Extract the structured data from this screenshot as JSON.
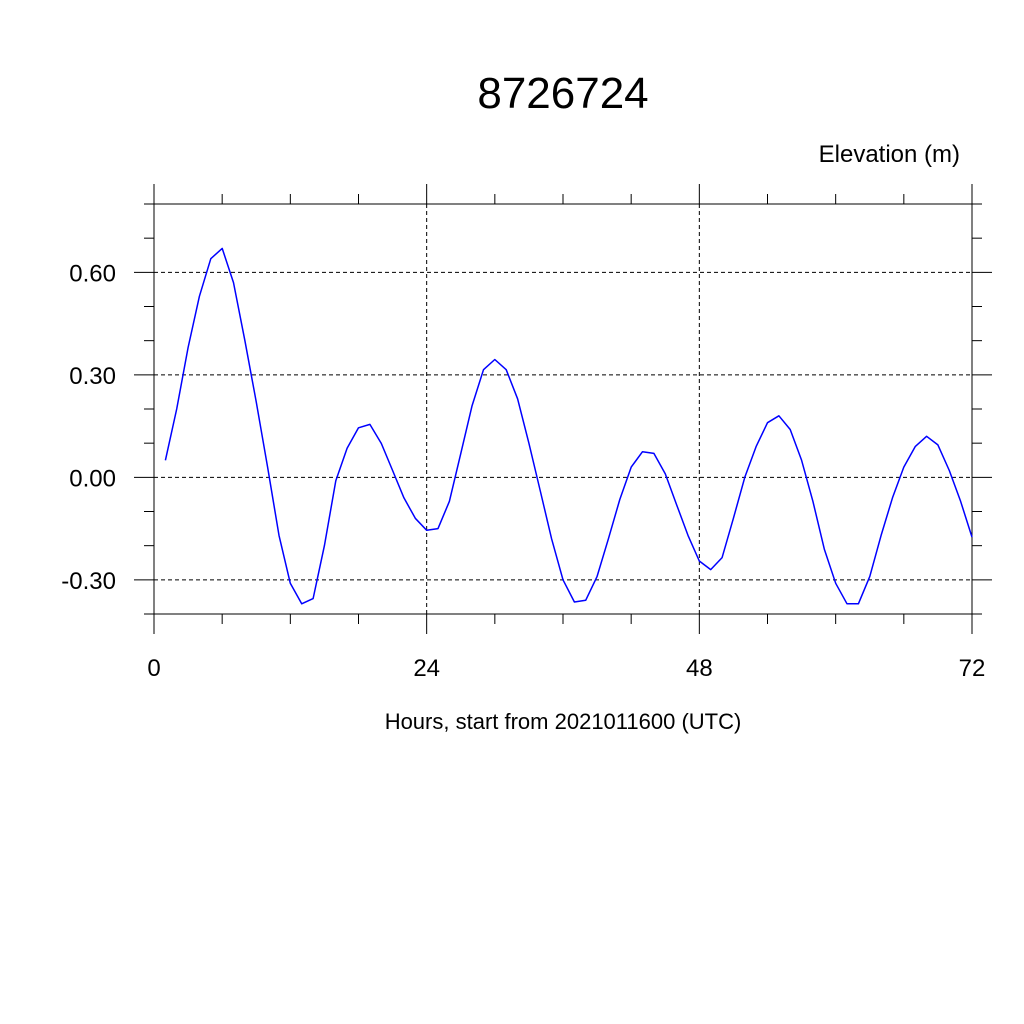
{
  "chart_data": {
    "type": "line",
    "title": "8726724",
    "ylabel": "Elevation (m)",
    "xlabel": "Hours, start from 2021011600 (UTC)",
    "xlim": [
      0,
      72
    ],
    "ylim": [
      -0.4,
      0.8
    ],
    "xticks": [
      0,
      24,
      48,
      72
    ],
    "xtick_labels": [
      "0",
      "24",
      "48",
      "72"
    ],
    "yticks": [
      0.6,
      0.3,
      0.0,
      -0.3
    ],
    "ytick_labels": [
      "0.60",
      "0.30",
      "0.00",
      "-0.30"
    ],
    "grid": true,
    "series": [
      {
        "color": "#0000ff",
        "x": [
          1,
          2,
          3,
          4,
          5,
          6,
          7,
          8,
          9,
          10,
          11,
          12,
          13,
          14,
          15,
          16,
          17,
          18,
          19,
          20,
          21,
          22,
          23,
          24,
          25,
          26,
          27,
          28,
          29,
          30,
          31,
          32,
          33,
          34,
          35,
          36,
          37,
          38,
          39,
          40,
          41,
          42,
          43,
          44,
          45,
          46,
          47,
          48,
          49,
          50,
          51,
          52,
          53,
          54,
          55,
          56,
          57,
          58,
          59,
          60,
          61,
          62,
          63,
          64,
          65,
          66,
          67,
          68,
          69,
          70,
          71,
          72
        ],
        "y": [
          0.05,
          0.2,
          0.38,
          0.53,
          0.64,
          0.67,
          0.57,
          0.4,
          0.22,
          0.03,
          -0.17,
          -0.31,
          -0.37,
          -0.355,
          -0.2,
          -0.01,
          0.085,
          0.145,
          0.155,
          0.1,
          0.02,
          -0.06,
          -0.12,
          -0.155,
          -0.15,
          -0.07,
          0.07,
          0.21,
          0.315,
          0.345,
          0.315,
          0.23,
          0.1,
          -0.04,
          -0.18,
          -0.3,
          -0.365,
          -0.36,
          -0.29,
          -0.18,
          -0.065,
          0.03,
          0.075,
          0.07,
          0.01,
          -0.08,
          -0.17,
          -0.245,
          -0.27,
          -0.235,
          -0.12,
          0.0,
          0.09,
          0.16,
          0.18,
          0.14,
          0.05,
          -0.07,
          -0.21,
          -0.31,
          -0.37,
          -0.37,
          -0.29,
          -0.17,
          -0.06,
          0.03,
          0.09,
          0.12,
          0.095,
          0.02,
          -0.07,
          -0.175
        ]
      }
    ]
  }
}
